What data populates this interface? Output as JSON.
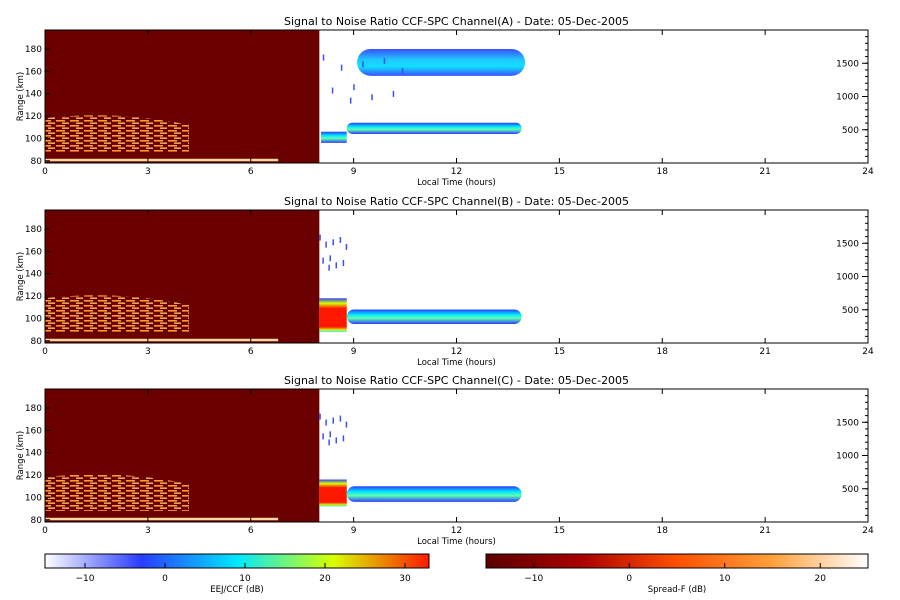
{
  "chart_data": [
    {
      "type": "heatmap",
      "title": "Signal to Noise Ratio CCF-SPC Channel(A) - Date: 05-Dec-2005",
      "xlabel": "Local Time (hours)",
      "ylabel": "Range (km)",
      "xlim": [
        0,
        24
      ],
      "ylim": [
        78,
        197
      ],
      "x_ticks": [
        0,
        3,
        6,
        9,
        12,
        15,
        18,
        21,
        24
      ],
      "y_ticks": [
        80,
        100,
        120,
        140,
        160,
        180
      ],
      "y2_ticks": [
        500,
        1000,
        1500
      ],
      "y2lim": [
        0,
        2000
      ],
      "regions": [
        {
          "kind": "spread_f_block",
          "x": [
            0,
            8
          ],
          "y": [
            80,
            197
          ],
          "level_db": -11
        },
        {
          "kind": "spread_f_streaks",
          "x": [
            0,
            4.2
          ],
          "y": [
            88,
            118
          ],
          "level_db": 10
        },
        {
          "kind": "eej_blob",
          "x": [
            8.05,
            8.8
          ],
          "y": [
            96,
            106
          ],
          "level_db": 5
        },
        {
          "kind": "eej_layer",
          "x": [
            8.8,
            13.9
          ],
          "y": [
            104,
            114
          ],
          "level_db": -3
        },
        {
          "kind": "ccf_layer",
          "x": [
            9.1,
            14.0
          ],
          "y": [
            156,
            180
          ],
          "level_db": 0
        },
        {
          "kind": "ccf_scatter",
          "x": [
            8.1,
            10.5
          ],
          "y": [
            125,
            175
          ],
          "level_db": -10
        }
      ]
    },
    {
      "type": "heatmap",
      "title": "Signal to Noise Ratio CCF-SPC Channel(B) - Date: 05-Dec-2005",
      "xlabel": "Local Time (hours)",
      "ylabel": "Range (km)",
      "xlim": [
        0,
        24
      ],
      "ylim": [
        78,
        197
      ],
      "x_ticks": [
        0,
        3,
        6,
        9,
        12,
        15,
        18,
        21,
        24
      ],
      "y_ticks": [
        80,
        100,
        120,
        140,
        160,
        180
      ],
      "y2_ticks": [
        500,
        1000,
        1500
      ],
      "y2lim": [
        0,
        2000
      ],
      "regions": [
        {
          "kind": "spread_f_block",
          "x": [
            0,
            8
          ],
          "y": [
            80,
            197
          ],
          "level_db": -11
        },
        {
          "kind": "spread_f_streaks",
          "x": [
            0,
            4.2
          ],
          "y": [
            88,
            118
          ],
          "level_db": 10
        },
        {
          "kind": "eej_blob",
          "x": [
            8.0,
            8.8
          ],
          "y": [
            88,
            118
          ],
          "level_db": 30
        },
        {
          "kind": "eej_layer",
          "x": [
            8.8,
            13.9
          ],
          "y": [
            95,
            108
          ],
          "level_db": 5
        },
        {
          "kind": "ccf_scatter",
          "x": [
            8.0,
            8.8
          ],
          "y": [
            140,
            175
          ],
          "level_db": -8
        }
      ]
    },
    {
      "type": "heatmap",
      "title": "Signal to Noise Ratio CCF-SPC Channel(C) - Date: 05-Dec-2005",
      "xlabel": "Local Time (hours)",
      "ylabel": "Range (km)",
      "xlim": [
        0,
        24
      ],
      "ylim": [
        78,
        197
      ],
      "x_ticks": [
        0,
        3,
        6,
        9,
        12,
        15,
        18,
        21,
        24
      ],
      "y_ticks": [
        80,
        100,
        120,
        140,
        160,
        180
      ],
      "y2_ticks": [
        500,
        1000,
        1500
      ],
      "y2lim": [
        0,
        2000
      ],
      "regions": [
        {
          "kind": "spread_f_block",
          "x": [
            0,
            8
          ],
          "y": [
            80,
            197
          ],
          "level_db": -11
        },
        {
          "kind": "spread_f_streaks",
          "x": [
            0,
            4.2
          ],
          "y": [
            88,
            118
          ],
          "level_db": 10
        },
        {
          "kind": "eej_blob",
          "x": [
            8.0,
            8.8
          ],
          "y": [
            92,
            116
          ],
          "level_db": 28
        },
        {
          "kind": "eej_layer",
          "x": [
            8.8,
            13.9
          ],
          "y": [
            96,
            110
          ],
          "level_db": 8
        },
        {
          "kind": "ccf_scatter",
          "x": [
            8.0,
            8.8
          ],
          "y": [
            145,
            175
          ],
          "level_db": -8
        }
      ]
    }
  ],
  "colorbars": [
    {
      "name": "EEJ/CCF (dB)",
      "range": [
        -15,
        33
      ],
      "ticks": [
        -10,
        0,
        10,
        20,
        30
      ],
      "stops": [
        "#ffffff",
        "#2a3cff",
        "#00e8ff",
        "#d8ff00",
        "#ff1800"
      ]
    },
    {
      "name": "Spread-F (dB)",
      "range": [
        -15,
        25
      ],
      "ticks": [
        -10,
        0,
        10,
        20
      ],
      "stops": [
        "#5c0000",
        "#aa0000",
        "#ff5000",
        "#ffa03c",
        "#ffffff"
      ]
    }
  ]
}
